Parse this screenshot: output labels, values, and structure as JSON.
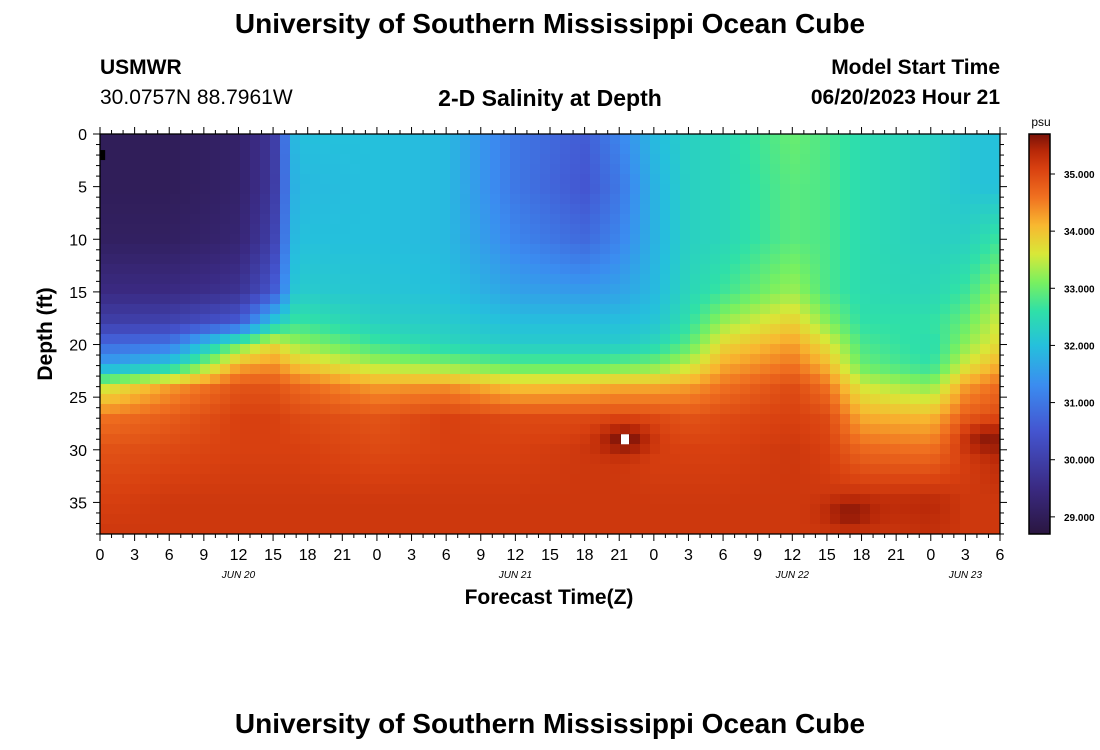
{
  "header": {
    "title": "University of Southern Mississippi Ocean Cube",
    "station": "USMWR",
    "location": "30.0757N  88.7961W",
    "subtitle": "2-D Salinity at Depth",
    "model_start_label": "Model Start Time",
    "model_start_value": "06/20/2023 Hour 21"
  },
  "footer": {
    "title": "University of Southern Mississippi Ocean Cube"
  },
  "chart_data": {
    "type": "heatmap",
    "xlabel": "Forecast Time(Z)",
    "ylabel": "Depth (ft)",
    "colorbar_unit": "psu",
    "xlim": [
      0,
      78
    ],
    "ylim": [
      0,
      38
    ],
    "y_inverted": true,
    "x_tick_values": [
      0,
      3,
      6,
      9,
      12,
      15,
      18,
      21,
      24,
      27,
      30,
      33,
      36,
      39,
      42,
      45,
      48,
      51,
      54,
      57,
      60,
      63,
      66,
      69,
      72,
      75,
      78
    ],
    "x_tick_labels": [
      "0",
      "3",
      "6",
      "9",
      "12",
      "15",
      "18",
      "21",
      "0",
      "3",
      "6",
      "9",
      "12",
      "15",
      "18",
      "21",
      "0",
      "3",
      "6",
      "9",
      "12",
      "15",
      "18",
      "21",
      "0",
      "3",
      "6"
    ],
    "date_labels": [
      {
        "x": 12,
        "label": "JUN 20"
      },
      {
        "x": 36,
        "label": "JUN 21"
      },
      {
        "x": 60,
        "label": "JUN 22"
      },
      {
        "x": 75,
        "label": "JUN 23"
      }
    ],
    "y_ticks": [
      0,
      5,
      10,
      15,
      20,
      25,
      30,
      35
    ],
    "colorbar_range": [
      28.7,
      35.7
    ],
    "colorbar_ticks": [
      "29.000",
      "30.000",
      "31.000",
      "32.000",
      "33.000",
      "34.000",
      "35.000"
    ],
    "colorbar_tick_values": [
      29,
      30,
      31,
      32,
      33,
      34,
      35
    ],
    "colormap_stops": [
      {
        "v": 28.7,
        "color": "#2a1640"
      },
      {
        "v": 29.5,
        "color": "#3a2a82"
      },
      {
        "v": 30.5,
        "color": "#4455d0"
      },
      {
        "v": 31.3,
        "color": "#3b8cf0"
      },
      {
        "v": 32.0,
        "color": "#25c0dc"
      },
      {
        "v": 32.6,
        "color": "#2fe0a8"
      },
      {
        "v": 33.1,
        "color": "#78f060"
      },
      {
        "v": 33.6,
        "color": "#d8e838"
      },
      {
        "v": 34.1,
        "color": "#f8b830"
      },
      {
        "v": 34.6,
        "color": "#f07020"
      },
      {
        "v": 35.1,
        "color": "#d84010"
      },
      {
        "v": 35.4,
        "color": "#b82808"
      },
      {
        "v": 35.7,
        "color": "#7a1208"
      }
    ],
    "grid_times": [
      0,
      6,
      12,
      15,
      17,
      24,
      30,
      36,
      42,
      45,
      48,
      51,
      54,
      60,
      63,
      66,
      72,
      75,
      78
    ],
    "grid_depths": [
      0,
      5,
      10,
      15,
      18,
      20,
      22,
      24,
      27,
      30,
      35,
      38
    ],
    "salinity": [
      [
        29.0,
        29.0,
        29.2,
        29.8,
        32.0,
        32.0,
        31.9,
        31.0,
        30.6,
        31.2,
        31.9,
        32.3,
        32.4,
        33.0,
        32.8,
        32.5,
        32.3,
        32.1,
        32.0
      ],
      [
        29.0,
        29.0,
        29.2,
        29.8,
        31.9,
        32.0,
        31.9,
        31.0,
        30.5,
        31.0,
        31.8,
        32.3,
        32.4,
        32.9,
        32.8,
        32.5,
        32.3,
        32.1,
        32.0
      ],
      [
        29.1,
        29.1,
        29.3,
        30.0,
        32.0,
        32.0,
        31.9,
        31.2,
        30.8,
        31.2,
        31.8,
        32.3,
        32.4,
        32.9,
        32.8,
        32.5,
        32.3,
        32.3,
        32.7
      ],
      [
        29.5,
        29.5,
        29.7,
        30.5,
        32.2,
        32.1,
        32.0,
        31.6,
        31.5,
        31.6,
        31.9,
        32.4,
        32.7,
        33.3,
        32.8,
        32.5,
        32.4,
        32.7,
        33.3
      ],
      [
        30.0,
        30.1,
        30.6,
        32.2,
        32.7,
        32.3,
        32.2,
        32.0,
        32.0,
        32.0,
        32.1,
        32.6,
        33.3,
        33.9,
        33.2,
        32.6,
        32.6,
        33.0,
        33.6
      ],
      [
        30.8,
        31.0,
        33.0,
        33.8,
        33.3,
        32.7,
        32.4,
        32.2,
        32.2,
        32.2,
        32.4,
        32.9,
        33.8,
        34.3,
        33.7,
        32.8,
        32.5,
        33.2,
        33.8
      ],
      [
        31.6,
        32.2,
        34.2,
        34.4,
        34.0,
        33.4,
        33.2,
        32.9,
        32.9,
        33.0,
        33.1,
        33.5,
        34.2,
        34.6,
        34.1,
        33.0,
        32.6,
        33.6,
        34.2
      ],
      [
        33.5,
        34.3,
        34.9,
        34.9,
        34.7,
        34.3,
        34.4,
        34.0,
        34.1,
        34.2,
        34.2,
        34.3,
        34.6,
        35.0,
        34.6,
        33.6,
        33.2,
        34.3,
        34.7
      ],
      [
        34.6,
        34.8,
        35.1,
        35.1,
        35.0,
        34.9,
        35.1,
        35.0,
        35.0,
        35.0,
        35.0,
        34.9,
        35.0,
        35.1,
        35.0,
        34.2,
        34.1,
        34.8,
        35.0
      ],
      [
        34.9,
        35.0,
        35.1,
        35.1,
        35.1,
        35.0,
        35.1,
        35.1,
        35.2,
        35.2,
        35.1,
        35.1,
        35.1,
        35.2,
        35.1,
        34.7,
        34.6,
        35.1,
        35.4
      ],
      [
        35.1,
        35.2,
        35.2,
        35.2,
        35.2,
        35.2,
        35.2,
        35.2,
        35.2,
        35.2,
        35.2,
        35.2,
        35.2,
        35.2,
        35.2,
        35.3,
        35.4,
        35.2,
        35.2
      ],
      [
        35.2,
        35.2,
        35.2,
        35.2,
        35.2,
        35.2,
        35.2,
        35.2,
        35.2,
        35.2,
        35.2,
        35.2,
        35.2,
        35.2,
        35.2,
        35.2,
        35.3,
        35.2,
        35.2
      ]
    ],
    "hotspots": [
      {
        "t": 45.5,
        "d": 29.0,
        "v": 35.7
      },
      {
        "t": 65.0,
        "d": 36.0,
        "v": 35.6
      },
      {
        "t": 77.0,
        "d": 29.0,
        "v": 35.6
      }
    ],
    "markers": [
      {
        "t": 45.5,
        "d": 29.0,
        "color": "#ffffff"
      },
      {
        "t": 0.1,
        "d": 2.0,
        "color": "#000000"
      }
    ]
  }
}
